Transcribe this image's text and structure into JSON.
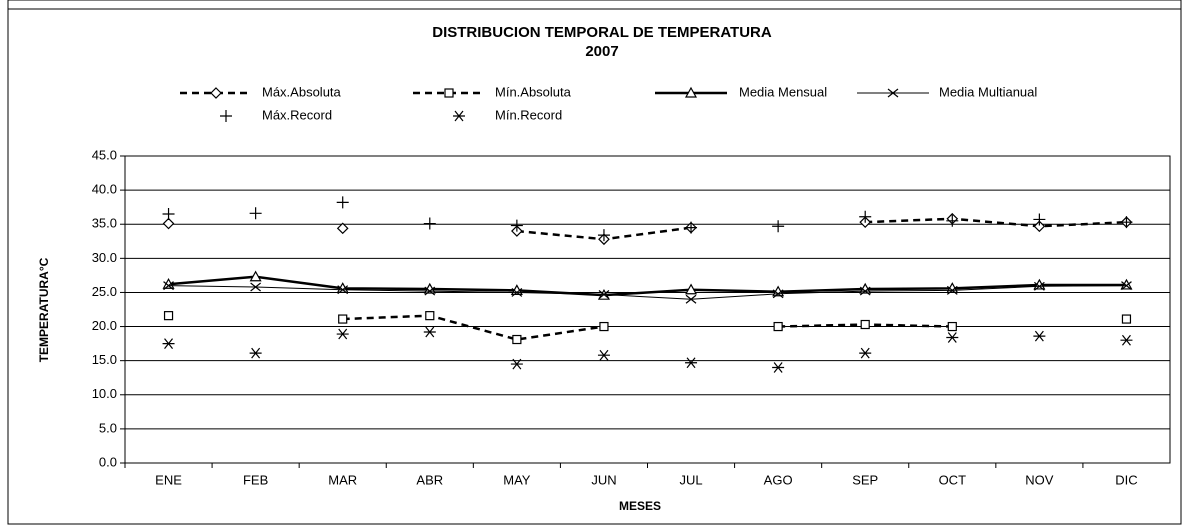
{
  "chart_data": {
    "type": "line",
    "title": "DISTRIBUCION TEMPORAL DE TEMPERATURA",
    "subtitle": "2007",
    "x_label": "MESES",
    "y_label": "TEMPERATURA°C",
    "categories": [
      "ENE",
      "FEB",
      "MAR",
      "ABR",
      "MAY",
      "JUN",
      "JUL",
      "AGO",
      "SEP",
      "OCT",
      "NOV",
      "DIC"
    ],
    "ylim": [
      0,
      45
    ],
    "yticks": [
      {
        "value": 0,
        "label": "0.0"
      },
      {
        "value": 5,
        "label": "5.0"
      },
      {
        "value": 10,
        "label": "10.0"
      },
      {
        "value": 15,
        "label": "15.0"
      },
      {
        "value": 20,
        "label": "20.0"
      },
      {
        "value": 25,
        "label": "25.0"
      },
      {
        "value": 30,
        "label": "30.0"
      },
      {
        "value": 35,
        "label": "35.0"
      },
      {
        "value": 40,
        "label": "40.0"
      },
      {
        "value": 45,
        "label": "45.0"
      }
    ],
    "grid": true,
    "series": [
      {
        "name": "Máx.Absoluta",
        "color": "#000000",
        "line": "dashed",
        "width": 2.5,
        "marker": "diamond",
        "values": [
          35.1,
          null,
          34.4,
          null,
          34.0,
          32.8,
          34.5,
          null,
          35.3,
          35.8,
          34.7,
          35.3
        ]
      },
      {
        "name": "Mín.Absoluta",
        "color": "#000000",
        "line": "dashed",
        "width": 2.5,
        "marker": "square",
        "values": [
          21.6,
          null,
          21.1,
          21.6,
          18.1,
          20.0,
          null,
          20.0,
          20.3,
          20.0,
          null,
          21.1
        ]
      },
      {
        "name": "Media Mensual",
        "color": "#000000",
        "line": "solid",
        "width": 2.5,
        "marker": "triangle",
        "values": [
          26.2,
          27.3,
          25.6,
          25.5,
          25.3,
          24.6,
          25.4,
          25.1,
          25.5,
          25.6,
          26.1,
          26.1
        ]
      },
      {
        "name": "Media Multianual",
        "color": "#000000",
        "line": "solid",
        "width": 1,
        "marker": "x",
        "values": [
          26.0,
          25.8,
          25.4,
          25.2,
          25.0,
          24.7,
          24.0,
          24.8,
          25.2,
          25.3,
          25.9,
          26.0
        ]
      },
      {
        "name": "Máx.Record",
        "color": "#000000",
        "line": "none",
        "width": 1,
        "marker": "plus",
        "values": [
          36.5,
          36.6,
          38.2,
          35.1,
          34.8,
          33.4,
          34.5,
          34.7,
          36.1,
          35.5,
          35.7,
          35.3
        ]
      },
      {
        "name": "Mín.Record",
        "color": "#000000",
        "line": "none",
        "width": 1,
        "marker": "star",
        "values": [
          17.5,
          16.1,
          18.9,
          19.2,
          14.5,
          15.8,
          14.7,
          14.0,
          16.1,
          18.4,
          18.6,
          18.0
        ]
      }
    ]
  }
}
